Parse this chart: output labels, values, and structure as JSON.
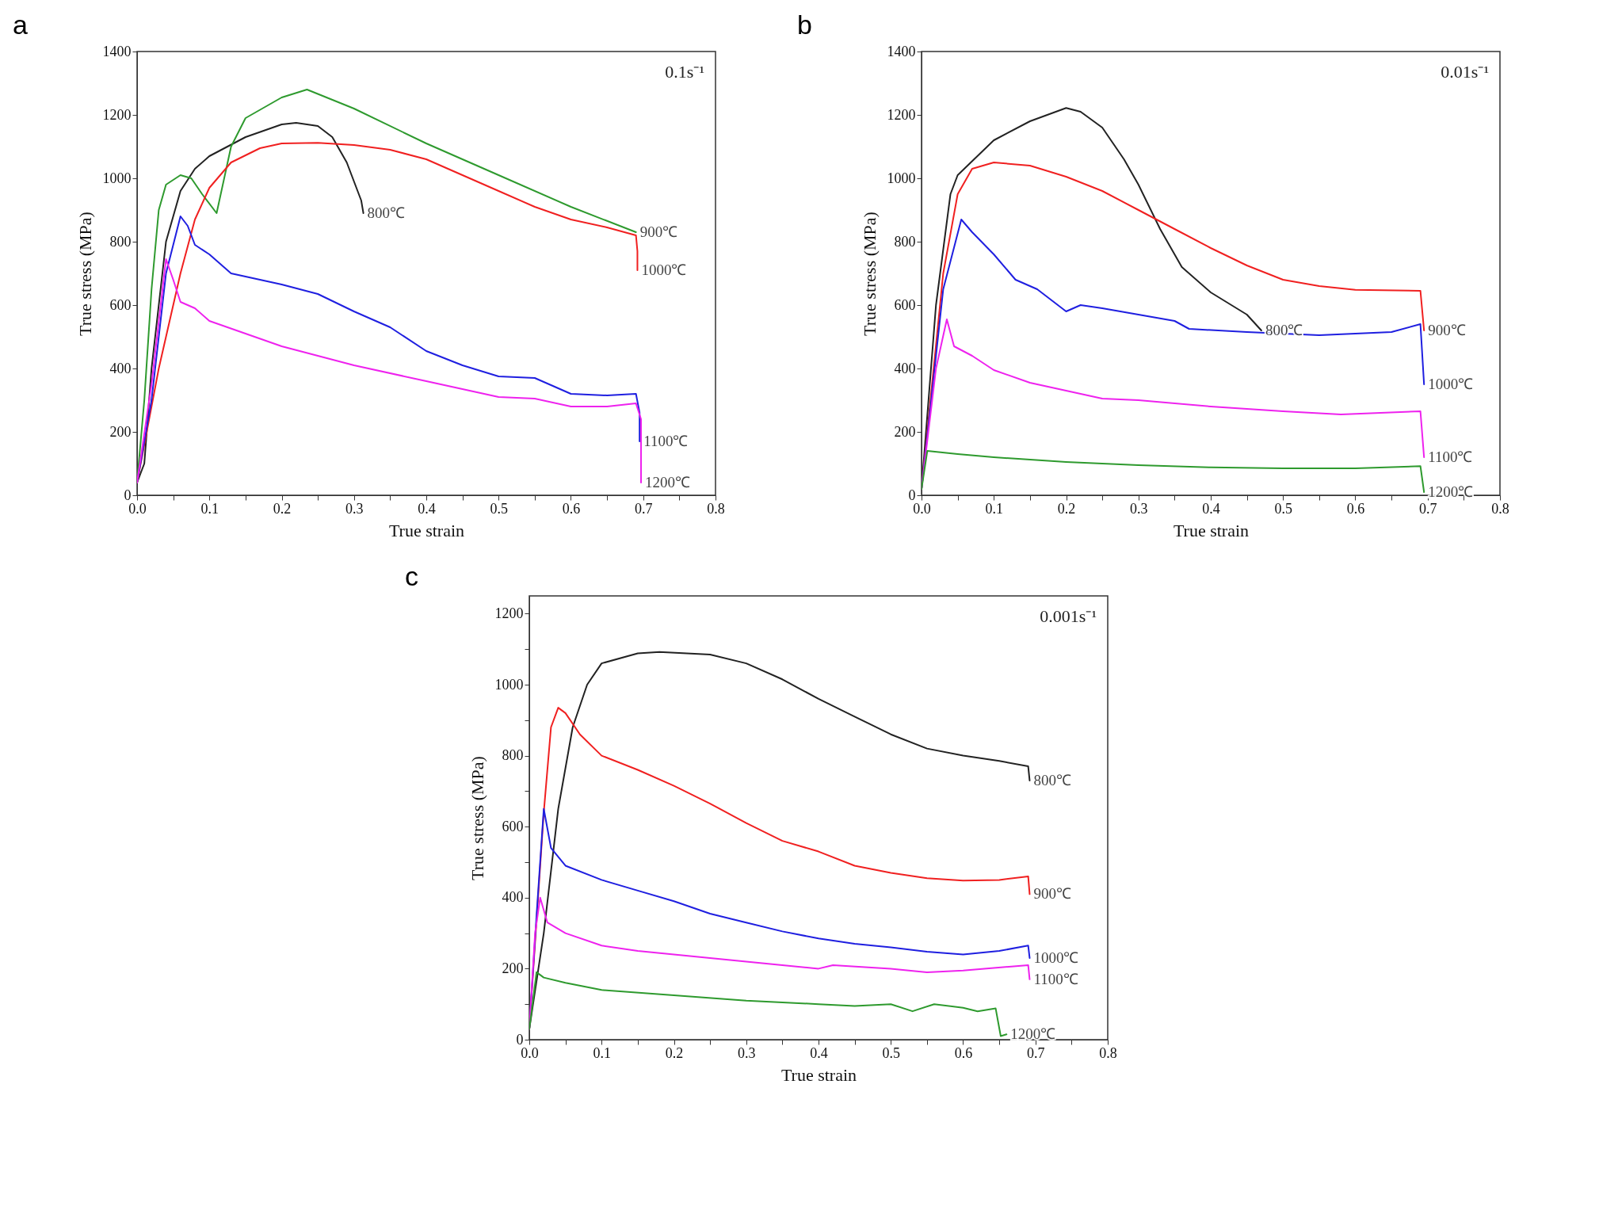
{
  "chart_data": [
    {
      "type": "line",
      "title": "a",
      "xlabel": "True strain",
      "ylabel": "True stress (MPa)",
      "annotations": [
        "0.1s⁻¹"
      ],
      "xlim": [
        0,
        0.8
      ],
      "ylim": [
        0,
        1400
      ],
      "yticks": [
        0,
        200,
        400,
        600,
        800,
        1000,
        1200,
        1400
      ],
      "xticks": [
        {
          "value": 0,
          "label": "0.0"
        },
        {
          "value": 0.05,
          "label": null
        },
        0.1,
        {
          "value": 0.15,
          "label": null
        },
        0.2,
        {
          "value": 0.25,
          "label": null
        },
        0.3,
        {
          "value": 0.35,
          "label": null
        },
        0.4,
        {
          "value": 0.45,
          "label": null
        },
        0.5,
        {
          "value": 0.55,
          "label": null
        },
        0.6,
        {
          "value": 0.65,
          "label": null
        },
        0.7,
        {
          "value": 0.75,
          "label": null
        },
        0.8
      ],
      "series": [
        {
          "name": "800℃",
          "color": "#222222",
          "x": [
            0,
            0.01,
            0.02,
            0.04,
            0.06,
            0.08,
            0.1,
            0.15,
            0.2,
            0.22,
            0.25,
            0.27,
            0.29,
            0.31,
            0.313
          ],
          "values": [
            40,
            100,
            400,
            800,
            960,
            1030,
            1070,
            1130,
            1170,
            1175,
            1165,
            1130,
            1050,
            930,
            890
          ]
        },
        {
          "name": "900℃",
          "color": "#2e9a2e",
          "x": [
            0,
            0.01,
            0.02,
            0.03,
            0.04,
            0.06,
            0.075,
            0.09,
            0.11,
            0.13,
            0.15,
            0.2,
            0.235,
            0.3,
            0.4,
            0.5,
            0.6,
            0.69
          ],
          "values": [
            40,
            300,
            650,
            900,
            980,
            1010,
            1000,
            950,
            890,
            1100,
            1190,
            1255,
            1280,
            1220,
            1110,
            1010,
            910,
            830
          ]
        },
        {
          "name": "1000℃",
          "color": "#f02020",
          "x": [
            0,
            0.03,
            0.06,
            0.08,
            0.1,
            0.13,
            0.17,
            0.2,
            0.25,
            0.3,
            0.35,
            0.4,
            0.45,
            0.5,
            0.55,
            0.6,
            0.65,
            0.69,
            0.692,
            0.692
          ],
          "values": [
            40,
            400,
            700,
            870,
            970,
            1050,
            1095,
            1110,
            1112,
            1105,
            1090,
            1060,
            1010,
            960,
            910,
            870,
            845,
            820,
            770,
            710
          ]
        },
        {
          "name": "1100℃",
          "color": "#1f1fe0",
          "x": [
            0,
            0.02,
            0.04,
            0.06,
            0.07,
            0.08,
            0.1,
            0.13,
            0.2,
            0.25,
            0.3,
            0.35,
            0.4,
            0.45,
            0.5,
            0.55,
            0.6,
            0.65,
            0.69,
            0.695,
            0.695
          ],
          "values": [
            40,
            300,
            700,
            880,
            850,
            790,
            760,
            700,
            665,
            635,
            580,
            530,
            455,
            410,
            375,
            370,
            320,
            315,
            320,
            260,
            170
          ]
        },
        {
          "name": "1200℃",
          "color": "#ee22ee",
          "x": [
            0,
            0.02,
            0.04,
            0.05,
            0.06,
            0.08,
            0.1,
            0.15,
            0.2,
            0.3,
            0.4,
            0.5,
            0.55,
            0.6,
            0.65,
            0.69,
            0.697,
            0.697
          ],
          "values": [
            40,
            350,
            745,
            680,
            610,
            590,
            550,
            510,
            470,
            410,
            360,
            310,
            305,
            280,
            280,
            290,
            240,
            40
          ]
        }
      ]
    },
    {
      "type": "line",
      "title": "b",
      "xlabel": "True strain",
      "ylabel": "True stress (MPa)",
      "annotations": [
        "0.01s⁻¹"
      ],
      "xlim": [
        0,
        0.8
      ],
      "ylim": [
        0,
        1400
      ],
      "yticks": [
        0,
        200,
        400,
        600,
        800,
        1000,
        1200,
        1400
      ],
      "xticks": [
        {
          "value": 0,
          "label": "0.0"
        },
        {
          "value": 0.05,
          "label": null
        },
        0.1,
        {
          "value": 0.15,
          "label": null
        },
        0.2,
        {
          "value": 0.25,
          "label": null
        },
        0.3,
        {
          "value": 0.35,
          "label": null
        },
        0.4,
        {
          "value": 0.45,
          "label": null
        },
        0.5,
        {
          "value": 0.55,
          "label": null
        },
        0.6,
        {
          "value": 0.65,
          "label": null
        },
        0.7,
        {
          "value": 0.75,
          "label": null
        },
        0.8
      ],
      "series": [
        {
          "name": "800℃",
          "color": "#222222",
          "x": [
            0,
            0.02,
            0.04,
            0.05,
            0.1,
            0.15,
            0.2,
            0.22,
            0.25,
            0.28,
            0.3,
            0.33,
            0.36,
            0.4,
            0.45,
            0.47
          ],
          "values": [
            20,
            600,
            950,
            1010,
            1120,
            1180,
            1222,
            1210,
            1160,
            1060,
            980,
            840,
            720,
            640,
            570,
            520
          ]
        },
        {
          "name": "900℃",
          "color": "#f02020",
          "x": [
            0,
            0.03,
            0.05,
            0.07,
            0.1,
            0.15,
            0.2,
            0.25,
            0.3,
            0.35,
            0.4,
            0.45,
            0.5,
            0.55,
            0.6,
            0.69,
            0.695
          ],
          "values": [
            20,
            700,
            950,
            1030,
            1050,
            1040,
            1005,
            960,
            900,
            840,
            780,
            725,
            680,
            660,
            648,
            645,
            520
          ]
        },
        {
          "name": "1000℃",
          "color": "#1f1fe0",
          "x": [
            0,
            0.03,
            0.055,
            0.07,
            0.1,
            0.13,
            0.16,
            0.2,
            0.22,
            0.25,
            0.3,
            0.35,
            0.37,
            0.45,
            0.55,
            0.65,
            0.69,
            0.695
          ],
          "values": [
            20,
            650,
            870,
            830,
            760,
            680,
            650,
            580,
            600,
            590,
            570,
            550,
            525,
            515,
            505,
            515,
            540,
            350
          ]
        },
        {
          "name": "1100℃",
          "color": "#ee22ee",
          "x": [
            0,
            0.02,
            0.035,
            0.045,
            0.07,
            0.1,
            0.15,
            0.2,
            0.25,
            0.3,
            0.4,
            0.5,
            0.58,
            0.69,
            0.695
          ],
          "values": [
            20,
            400,
            555,
            470,
            440,
            395,
            355,
            330,
            305,
            300,
            280,
            265,
            255,
            265,
            120
          ]
        },
        {
          "name": "1200℃",
          "color": "#2e9a2e",
          "x": [
            0,
            0.008,
            0.05,
            0.1,
            0.2,
            0.3,
            0.4,
            0.5,
            0.6,
            0.69,
            0.695
          ],
          "values": [
            20,
            140,
            130,
            120,
            105,
            95,
            88,
            85,
            85,
            92,
            10
          ]
        }
      ]
    },
    {
      "type": "line",
      "title": "c",
      "xlabel": "True strain",
      "ylabel": "True stress (MPa)",
      "annotations": [
        "0.001s⁻¹"
      ],
      "xlim": [
        0,
        0.8
      ],
      "ylim": [
        0,
        1250
      ],
      "xticks": [
        {
          "value": 0,
          "label": "0.0"
        },
        {
          "value": 0.05,
          "label": null
        },
        0.1,
        {
          "value": 0.15,
          "label": null
        },
        0.2,
        {
          "value": 0.25,
          "label": null
        },
        0.3,
        {
          "value": 0.35,
          "label": null
        },
        0.4,
        {
          "value": 0.45,
          "label": null
        },
        0.5,
        {
          "value": 0.55,
          "label": null
        },
        0.6,
        {
          "value": 0.65,
          "label": null
        },
        0.7,
        {
          "value": 0.75,
          "label": null
        },
        0.8
      ],
      "yticks": [
        0,
        {
          "value": 100,
          "label": null
        },
        200,
        {
          "value": 300,
          "label": null
        },
        400,
        {
          "value": 500,
          "label": null
        },
        600,
        {
          "value": 700,
          "label": null
        },
        800,
        {
          "value": 900,
          "label": null
        },
        1000,
        {
          "value": 1100,
          "label": null
        },
        1200
      ],
      "series": [
        {
          "name": "800℃",
          "color": "#222222",
          "x": [
            0,
            0.02,
            0.04,
            0.06,
            0.08,
            0.1,
            0.15,
            0.18,
            0.25,
            0.3,
            0.35,
            0.4,
            0.45,
            0.5,
            0.55,
            0.6,
            0.65,
            0.69,
            0.692
          ],
          "values": [
            30,
            300,
            650,
            880,
            1000,
            1060,
            1088,
            1092,
            1085,
            1060,
            1015,
            960,
            910,
            860,
            820,
            800,
            785,
            770,
            730
          ]
        },
        {
          "name": "900℃",
          "color": "#f02020",
          "x": [
            0,
            0.02,
            0.03,
            0.04,
            0.05,
            0.07,
            0.1,
            0.15,
            0.2,
            0.25,
            0.3,
            0.35,
            0.4,
            0.45,
            0.5,
            0.55,
            0.6,
            0.65,
            0.69,
            0.692
          ],
          "values": [
            30,
            640,
            880,
            935,
            920,
            860,
            800,
            760,
            715,
            665,
            610,
            560,
            530,
            490,
            470,
            455,
            448,
            450,
            460,
            410
          ]
        },
        {
          "name": "1000℃",
          "color": "#1f1fe0",
          "x": [
            0,
            0.01,
            0.02,
            0.03,
            0.05,
            0.1,
            0.15,
            0.2,
            0.25,
            0.3,
            0.35,
            0.4,
            0.45,
            0.5,
            0.55,
            0.6,
            0.65,
            0.69,
            0.692
          ],
          "values": [
            30,
            350,
            650,
            540,
            490,
            450,
            420,
            390,
            355,
            330,
            305,
            285,
            270,
            260,
            248,
            240,
            250,
            265,
            230
          ]
        },
        {
          "name": "1100℃",
          "color": "#ee22ee",
          "x": [
            0,
            0.008,
            0.015,
            0.025,
            0.05,
            0.1,
            0.15,
            0.2,
            0.25,
            0.3,
            0.35,
            0.4,
            0.42,
            0.5,
            0.55,
            0.6,
            0.69,
            0.692
          ],
          "values": [
            30,
            300,
            400,
            330,
            300,
            265,
            250,
            240,
            230,
            220,
            210,
            200,
            210,
            200,
            190,
            195,
            210,
            170
          ]
        },
        {
          "name": "1200℃",
          "color": "#2e9a2e",
          "x": [
            0,
            0.01,
            0.02,
            0.05,
            0.1,
            0.2,
            0.3,
            0.4,
            0.45,
            0.5,
            0.53,
            0.56,
            0.6,
            0.62,
            0.645,
            0.652,
            0.66
          ],
          "values": [
            30,
            190,
            175,
            160,
            140,
            125,
            110,
            100,
            95,
            100,
            80,
            100,
            90,
            80,
            88,
            10,
            15
          ]
        }
      ]
    }
  ]
}
